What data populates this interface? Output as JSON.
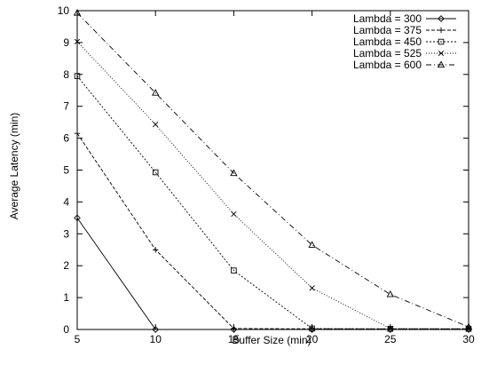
{
  "chart_data": {
    "type": "line",
    "title": "",
    "xlabel": "Buffer Size (min)",
    "ylabel": "Average Latency (min)",
    "x": [
      5,
      10,
      15,
      20,
      25,
      30
    ],
    "xlim": [
      5,
      30
    ],
    "ylim": [
      0,
      10
    ],
    "xticks": [
      "5",
      "10",
      "15",
      "20",
      "25",
      "30"
    ],
    "yticks": [
      "0",
      "1",
      "2",
      "3",
      "4",
      "5",
      "6",
      "7",
      "8",
      "9",
      "10"
    ],
    "grid": false,
    "legend_position": "top-right",
    "series": [
      {
        "name": "Lambda = 300",
        "marker": "diamond",
        "dash": "solid",
        "values": [
          3.5,
          0,
          0,
          0,
          0,
          0
        ]
      },
      {
        "name": "Lambda = 375",
        "marker": "plus",
        "dash": "dashed",
        "values": [
          6.15,
          2.5,
          0.03,
          0.02,
          0.02,
          0.02
        ]
      },
      {
        "name": "Lambda = 450",
        "marker": "square",
        "dash": "dotted",
        "values": [
          7.95,
          4.93,
          1.85,
          0.03,
          0.02,
          0.02
        ]
      },
      {
        "name": "Lambda = 525",
        "marker": "cross",
        "dash": "fine-dotted",
        "values": [
          9.03,
          6.43,
          3.62,
          1.3,
          0.03,
          0.02
        ]
      },
      {
        "name": "Lambda = 600",
        "marker": "triangle",
        "dash": "dash-dot",
        "values": [
          9.93,
          7.42,
          4.9,
          2.65,
          1.1,
          0.08
        ]
      }
    ]
  }
}
